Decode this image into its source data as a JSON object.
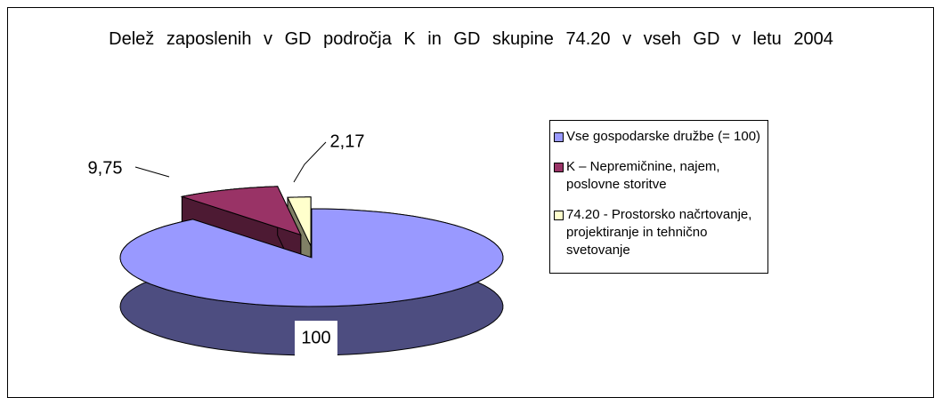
{
  "chart_data": {
    "type": "pie",
    "title": "Delež zaposlenih v GD področja K in GD skupine 74.20 v vseh GD v letu 2004",
    "categories": [
      "Vse gospodarske družbe (= 100)",
      "K – Nepremičnine, najem, poslovne storitve",
      "74.20 - Prostorsko načrtovanje, projektiranje in tehnično svetovanje"
    ],
    "values": [
      100,
      9.75,
      2.17
    ],
    "value_labels": [
      "100",
      "9,75",
      "2,17"
    ],
    "colors": [
      "#9999ff",
      "#993366",
      "#ffffcc"
    ],
    "legend": "right"
  }
}
